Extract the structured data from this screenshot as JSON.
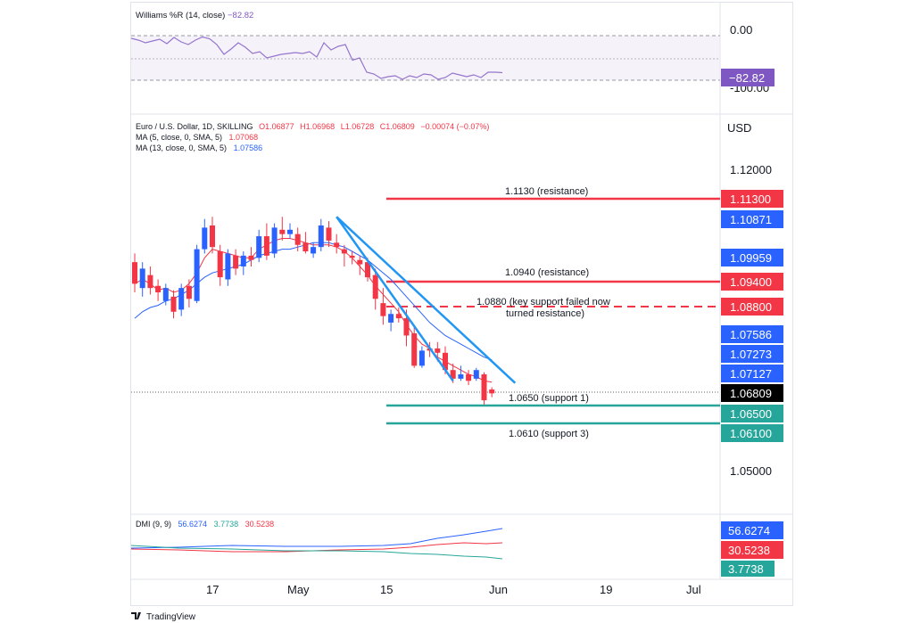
{
  "branding": {
    "name": "TradingView"
  },
  "williams": {
    "header": "Williams %R (14, close)",
    "value": "−82.82",
    "axis_top": "0.00",
    "axis_bottom": "-100.00",
    "badge": "−82.82",
    "badge_color": "#7e57c2",
    "values": [
      -6,
      -10,
      -16,
      -12,
      -8,
      -18,
      -4,
      -14,
      -20,
      -10,
      -3,
      -7,
      -20,
      -42,
      -30,
      -16,
      -26,
      -40,
      -36,
      -50,
      -46,
      -42,
      -40,
      -38,
      -40,
      -36,
      -48,
      -16,
      -32,
      -24,
      -20,
      -55,
      -50,
      -82,
      -86,
      -96,
      -92,
      -90,
      -98,
      -90,
      -94,
      -86,
      -88,
      -98,
      -94,
      -84,
      -88,
      -92,
      -88,
      -94,
      -82,
      -82,
      -83
    ]
  },
  "main": {
    "symbol_line": "Euro / U.S. Dollar, 1D, SKILLING",
    "ohlc": {
      "o": "O1.06877",
      "h": "H1.06968",
      "l": "L1.06728",
      "c": "C1.06809",
      "chg": "−0.00074 (−0.07%)"
    },
    "ma5": {
      "label": "MA (5, close, 0, SMA, 5)",
      "value": "1.07068",
      "color": "#f23645"
    },
    "ma13": {
      "label": "MA (13, close, 0, SMA, 5)",
      "value": "1.07586",
      "color": "#2962ff"
    },
    "currency": "USD",
    "tick_1120": "1.12000",
    "tick_1050": "1.05000",
    "badges": {
      "b1": "1.11300",
      "b2": "1.10871",
      "b3": "1.09959",
      "b4": "1.09400",
      "b5": "1.08800",
      "b6": "1.07586",
      "b7": "1.07273",
      "b8": "1.07127",
      "b9": "1.06809",
      "b10": "1.06500",
      "b11": "1.06100"
    },
    "annotations": {
      "r1": "1.1130 (resistance)",
      "r2": "1.0940 (resistance)",
      "r3a": "1.0880 (key support failed now",
      "r3b": "turned resistance)",
      "s1": "1.0650 (support 1)",
      "s3": "1.0610 (support 3)"
    }
  },
  "dmi": {
    "header": "DMI (9, 9)",
    "plus": "56.6274",
    "minus": "3.7738",
    "adx": "30.5238",
    "badge_plus": "56.6274",
    "badge_adx": "30.5238",
    "badge_minus": "3.7738"
  },
  "xaxis": {
    "t1": "17",
    "t2": "May",
    "t3": "15",
    "t4": "Jun",
    "t5": "19",
    "t6": "Jul"
  },
  "colors": {
    "up": "#2962ff",
    "down": "#f23645",
    "support": "#26a69a",
    "resistance": "#f23645",
    "trend": "#2196f3",
    "williams": "#9575cd"
  },
  "chart_data": {
    "type": "candlestick",
    "title": "Euro / U.S. Dollar, 1D",
    "ylim": [
      1.045,
      1.1275
    ],
    "x_ticks": [
      "17",
      "May",
      "15",
      "Jun",
      "19",
      "Jul"
    ],
    "candles": [
      [
        1.0985,
        1.1005,
        1.0915,
        1.0935
      ],
      [
        1.0925,
        1.0985,
        1.0905,
        1.097
      ],
      [
        1.0955,
        1.0975,
        1.091,
        1.0925
      ],
      [
        1.093,
        1.0945,
        1.0895,
        1.0915
      ],
      [
        1.0895,
        1.0935,
        1.0885,
        1.0925
      ],
      [
        1.0905,
        1.092,
        1.0855,
        1.087
      ],
      [
        1.0875,
        1.0935,
        1.086,
        1.0925
      ],
      [
        1.093,
        1.0945,
        1.088,
        1.09
      ],
      [
        1.0895,
        1.1025,
        1.089,
        1.1015
      ],
      [
        1.1015,
        1.1085,
        1.1005,
        1.1065
      ],
      [
        1.107,
        1.109,
        1.1005,
        1.102
      ],
      [
        1.101,
        1.1025,
        1.093,
        1.095
      ],
      [
        1.0945,
        1.1015,
        1.093,
        1.1005
      ],
      [
        1.1,
        1.1015,
        1.0955,
        1.097
      ],
      [
        1.0975,
        1.101,
        1.0955,
        1.1
      ],
      [
        1.1,
        1.102,
        1.0975,
        1.099
      ],
      [
        1.0995,
        1.106,
        1.0985,
        1.1045
      ],
      [
        1.1045,
        1.1075,
        1.099,
        1.1
      ],
      [
        1.1005,
        1.1075,
        1.0995,
        1.1065
      ],
      [
        1.106,
        1.109,
        1.1035,
        1.105
      ],
      [
        1.105,
        1.1075,
        1.104,
        1.106
      ],
      [
        1.105,
        1.1065,
        1.101,
        1.1025
      ],
      [
        1.103,
        1.1055,
        1.1005,
        1.101
      ],
      [
        1.1005,
        1.103,
        1.0995,
        1.102
      ],
      [
        1.102,
        1.1085,
        1.101,
        1.107
      ],
      [
        1.1065,
        1.108,
        1.102,
        1.1035
      ],
      [
        1.103,
        1.105,
        1.1005,
        1.102
      ],
      [
        1.1015,
        1.1025,
        1.0975,
        1.1005
      ],
      [
        1.1,
        1.101,
        1.098,
        1.0995
      ],
      [
        1.099,
        1.1,
        1.0955,
        1.098
      ],
      [
        1.0985,
        1.0995,
        1.094,
        1.095
      ],
      [
        1.0955,
        1.097,
        1.0875,
        1.09
      ],
      [
        1.089,
        1.0925,
        1.084,
        1.086
      ],
      [
        1.0845,
        1.0875,
        1.0825,
        1.0865
      ],
      [
        1.0865,
        1.088,
        1.0845,
        1.0855
      ],
      [
        1.0855,
        1.0875,
        1.079,
        1.0815
      ],
      [
        1.082,
        1.0835,
        1.074,
        1.0745
      ],
      [
        1.0745,
        1.079,
        1.074,
        1.078
      ],
      [
        1.0785,
        1.08,
        1.0765,
        1.078
      ],
      [
        1.0785,
        1.08,
        1.0755,
        1.0775
      ],
      [
        1.0775,
        1.079,
        1.0725,
        1.0735
      ],
      [
        1.0735,
        1.075,
        1.0705,
        1.0715
      ],
      [
        1.0715,
        1.0745,
        1.071,
        1.0725
      ],
      [
        1.0725,
        1.0735,
        1.07,
        1.071
      ],
      [
        1.0715,
        1.074,
        1.071,
        1.0735
      ],
      [
        1.0725,
        1.073,
        1.0655,
        1.0665
      ],
      [
        1.069,
        1.0695,
        1.0672,
        1.0681
      ]
    ],
    "ma5": [
      1.0935,
      1.0945,
      1.0935,
      1.092,
      1.0925,
      1.0915,
      1.092,
      1.0935,
      1.096,
      1.0995,
      1.1015,
      1.101,
      1.1005,
      1.1,
      1.0995,
      1.0995,
      1.1015,
      1.1025,
      1.1035,
      1.104,
      1.104,
      1.1035,
      1.103,
      1.1025,
      1.1025,
      1.1025,
      1.102,
      1.101,
      1.0995,
      1.0975,
      1.0955,
      1.093,
      1.091,
      1.089,
      1.087,
      1.084,
      1.0815,
      1.0795,
      1.0785,
      1.0765,
      1.0755,
      1.0745,
      1.0735,
      1.0725,
      1.072,
      1.071,
      1.0707
    ],
    "ma13": [
      1.0855,
      1.087,
      1.088,
      1.0885,
      1.0895,
      1.09,
      1.091,
      1.092,
      1.0935,
      1.095,
      1.096,
      1.0965,
      1.097,
      1.0975,
      1.098,
      1.099,
      1.1,
      1.1005,
      1.101,
      1.1015,
      1.1015,
      1.102,
      1.1025,
      1.103,
      1.103,
      1.103,
      1.1025,
      1.102,
      1.101,
      1.1,
      1.099,
      1.0975,
      1.096,
      1.0945,
      1.0925,
      1.0905,
      1.0885,
      1.0865,
      1.0845,
      1.083,
      1.0815,
      1.0805,
      1.0795,
      1.0785,
      1.0775,
      1.0765,
      1.0759
    ],
    "levels": [
      {
        "price": 1.113,
        "label": "1.1130 (resistance)",
        "style": "solid",
        "color": "#f23645"
      },
      {
        "price": 1.094,
        "label": "1.0940 (resistance)",
        "style": "solid",
        "color": "#f23645"
      },
      {
        "price": 1.088,
        "label": "1.0880 (key support failed now turned resistance)",
        "style": "dashed",
        "color": "#f23645"
      },
      {
        "price": 1.065,
        "label": "1.0650 (support 1)",
        "style": "solid",
        "color": "#26a69a"
      },
      {
        "price": 1.061,
        "label": "1.0610 (support 3)",
        "style": "solid",
        "color": "#26a69a"
      }
    ],
    "trendlines": [
      {
        "from": [
          26,
          1.109
        ],
        "to": [
          49,
          1.0705
        ]
      },
      {
        "from": [
          26,
          1.109
        ],
        "to": [
          41,
          1.071
        ]
      }
    ]
  }
}
